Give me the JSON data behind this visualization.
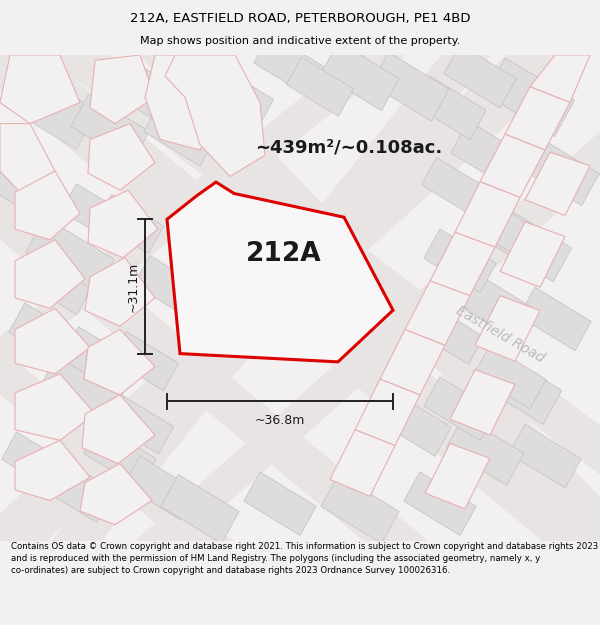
{
  "title_line1": "212A, EASTFIELD ROAD, PETERBOROUGH, PE1 4BD",
  "title_line2": "Map shows position and indicative extent of the property.",
  "area_label": "~439m²/~0.108ac.",
  "property_label": "212A",
  "dim_width": "~36.8m",
  "dim_height": "~31.1m",
  "road_label": "Eastfield Road",
  "footer_text": "Contains OS data © Crown copyright and database right 2021. This information is subject to Crown copyright and database rights 2023 and is reproduced with the permission of HM Land Registry. The polygons (including the associated geometry, namely x, y co-ordinates) are subject to Crown copyright and database rights 2023 Ordnance Survey 100026316.",
  "bg_color": "#f2f0f0",
  "map_bg": "#f2f0f0",
  "plot_outline_color": "#dd0000",
  "dim_line_color": "#222222",
  "title_fontsize": 9.5,
  "subtitle_fontsize": 8.0,
  "area_fontsize": 13,
  "dim_fontsize": 9,
  "footer_fontsize": 6.2,
  "road_label_fontsize": 10
}
